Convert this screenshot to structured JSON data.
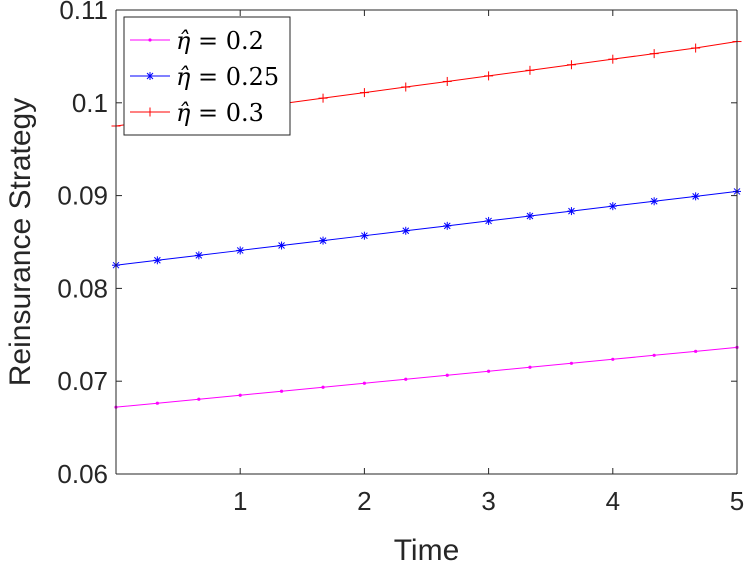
{
  "chart_data": {
    "type": "line",
    "title": "",
    "xlabel": "Time",
    "ylabel": "Reinsurance Strategy",
    "xlim": [
      0,
      5
    ],
    "ylim": [
      0.06,
      0.11
    ],
    "xticks": [
      1,
      2,
      3,
      4,
      5
    ],
    "xtick_labels": [
      "1",
      "2",
      "3",
      "4",
      "5"
    ],
    "yticks": [
      0.06,
      0.07,
      0.08,
      0.09,
      0.1,
      0.11
    ],
    "ytick_labels": [
      "0.06",
      "0.07",
      "0.08",
      "0.09",
      "0.1",
      "0.11"
    ],
    "grid": false,
    "legend_position": "top-left",
    "series": [
      {
        "name": "0.2",
        "legend_prefix": "η̂ = ",
        "color": "#ff00ff",
        "marker": "dot",
        "x": [
          0,
          0.333,
          0.667,
          1,
          1.333,
          1.667,
          2,
          2.333,
          2.667,
          3,
          3.333,
          3.667,
          4,
          4.333,
          4.667,
          5
        ],
        "y": [
          0.0672,
          0.06763,
          0.06806,
          0.06849,
          0.06892,
          0.06935,
          0.06978,
          0.07021,
          0.07064,
          0.07107,
          0.0715,
          0.07193,
          0.07236,
          0.07279,
          0.07322,
          0.07365
        ]
      },
      {
        "name": "0.25",
        "legend_prefix": "η̂ = ",
        "color": "#0000ff",
        "marker": "asterisk",
        "x": [
          0,
          0.333,
          0.667,
          1,
          1.333,
          1.667,
          2,
          2.333,
          2.667,
          3,
          3.333,
          3.667,
          4,
          4.333,
          4.667,
          5
        ],
        "y": [
          0.0825,
          0.08303,
          0.08356,
          0.08409,
          0.08462,
          0.08515,
          0.08568,
          0.08621,
          0.08674,
          0.08727,
          0.0878,
          0.08833,
          0.08886,
          0.08939,
          0.08992,
          0.09045
        ]
      },
      {
        "name": "0.3",
        "legend_prefix": "η̂ = ",
        "color": "#ff0000",
        "marker": "plus",
        "x": [
          0,
          0.333,
          0.667,
          1,
          1.333,
          1.667,
          2,
          2.333,
          2.667,
          3,
          3.333,
          3.667,
          4,
          4.333,
          4.667,
          5
        ],
        "y": [
          0.0975,
          0.0981,
          0.0987,
          0.0993,
          0.0999,
          0.1005,
          0.1011,
          0.1017,
          0.1023,
          0.1029,
          0.1035,
          0.1041,
          0.1047,
          0.1053,
          0.1059,
          0.1066
        ]
      }
    ]
  }
}
